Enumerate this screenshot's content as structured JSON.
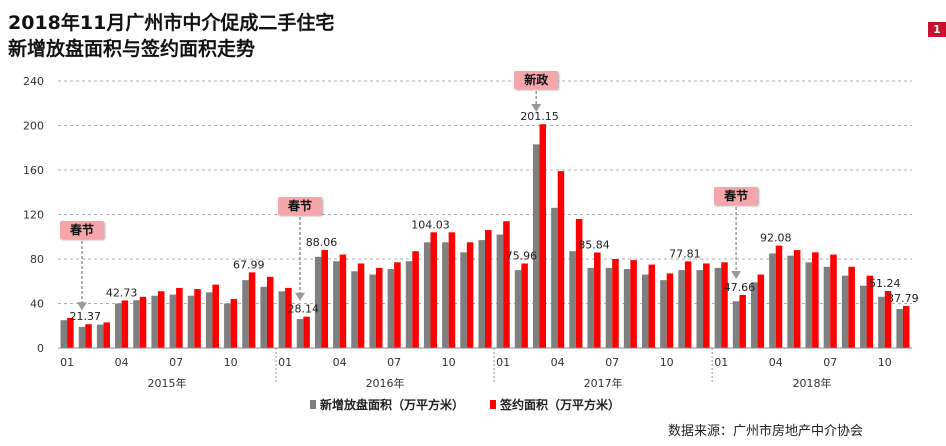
{
  "title": {
    "line1": "2018年11月广州市中介促成二手住宅",
    "line2": "新增放盘面积与签约面积走势"
  },
  "page_badge": "1",
  "source": "数据来源：广州市房地产中介协会",
  "callouts": [
    {
      "label": "春节",
      "month_index": 1
    },
    {
      "label": "春节",
      "month_index": 13
    },
    {
      "label": "新政",
      "month_index": 26
    },
    {
      "label": "春节",
      "month_index": 37
    }
  ],
  "colors": {
    "gray": "#7f7f7f",
    "red": "#ff0000",
    "callout": "#f4a6ab"
  },
  "chart_data": {
    "type": "bar",
    "title": "",
    "xlabel": "",
    "ylabel": "",
    "ylim": [
      0,
      240
    ],
    "yticks": [
      0,
      40,
      80,
      120,
      160,
      200,
      240
    ],
    "grid": true,
    "legend_position": "bottom",
    "month_tick_labels": [
      "01",
      "04",
      "07",
      "10",
      "01",
      "04",
      "07",
      "10",
      "01",
      "04",
      "07",
      "10",
      "01",
      "04",
      "07",
      "10"
    ],
    "month_tick_indices": [
      0,
      3,
      6,
      9,
      12,
      15,
      18,
      21,
      24,
      27,
      30,
      33,
      36,
      39,
      42,
      45
    ],
    "years": [
      {
        "label": "2015年",
        "start": 0,
        "end": 11
      },
      {
        "label": "2016年",
        "start": 12,
        "end": 23
      },
      {
        "label": "2017年",
        "start": 24,
        "end": 35
      },
      {
        "label": "2018年",
        "start": 36,
        "end": 46
      }
    ],
    "series": [
      {
        "name": "新增放盘面积（万平方米）",
        "color": "#7f7f7f",
        "values": [
          25,
          19,
          21,
          40,
          43,
          47,
          48,
          47,
          50,
          40,
          61,
          55,
          51,
          26,
          82,
          78,
          69,
          66,
          71,
          78,
          95,
          95,
          86,
          97,
          102,
          70,
          183,
          126,
          87,
          72,
          72,
          71,
          66,
          61,
          70,
          70,
          72,
          42,
          59,
          85,
          83,
          77,
          73,
          65,
          56,
          46,
          35
        ]
      },
      {
        "name": "签约面积（万平方米）",
        "color": "#ff0000",
        "values": [
          27,
          21.37,
          23,
          42.73,
          46,
          51,
          54,
          53,
          57,
          44,
          67.99,
          64,
          54,
          28.14,
          88.06,
          84,
          76,
          72,
          77,
          87,
          104.03,
          104,
          95,
          106,
          114,
          75.96,
          201.15,
          159,
          116,
          85.84,
          80,
          79,
          75,
          67,
          77.81,
          76,
          77,
          47.66,
          66,
          92.08,
          88,
          86,
          84,
          73,
          65,
          51.24,
          37.79
        ]
      }
    ],
    "data_labels": [
      {
        "series": 1,
        "index": 1,
        "text": "21.37"
      },
      {
        "series": 1,
        "index": 3,
        "text": "42.73"
      },
      {
        "series": 1,
        "index": 10,
        "text": "67.99"
      },
      {
        "series": 1,
        "index": 13,
        "text": "28.14"
      },
      {
        "series": 1,
        "index": 14,
        "text": "88.06"
      },
      {
        "series": 1,
        "index": 20,
        "text": "104.03"
      },
      {
        "series": 1,
        "index": 25,
        "text": "75.96"
      },
      {
        "series": 1,
        "index": 26,
        "text": "201.15"
      },
      {
        "series": 1,
        "index": 29,
        "text": "85.84"
      },
      {
        "series": 1,
        "index": 34,
        "text": "77.81"
      },
      {
        "series": 1,
        "index": 37,
        "text": "47.66"
      },
      {
        "series": 1,
        "index": 39,
        "text": "92.08"
      },
      {
        "series": 1,
        "index": 45,
        "text": "51.24"
      },
      {
        "series": 1,
        "index": 46,
        "text": "37.79"
      }
    ]
  }
}
